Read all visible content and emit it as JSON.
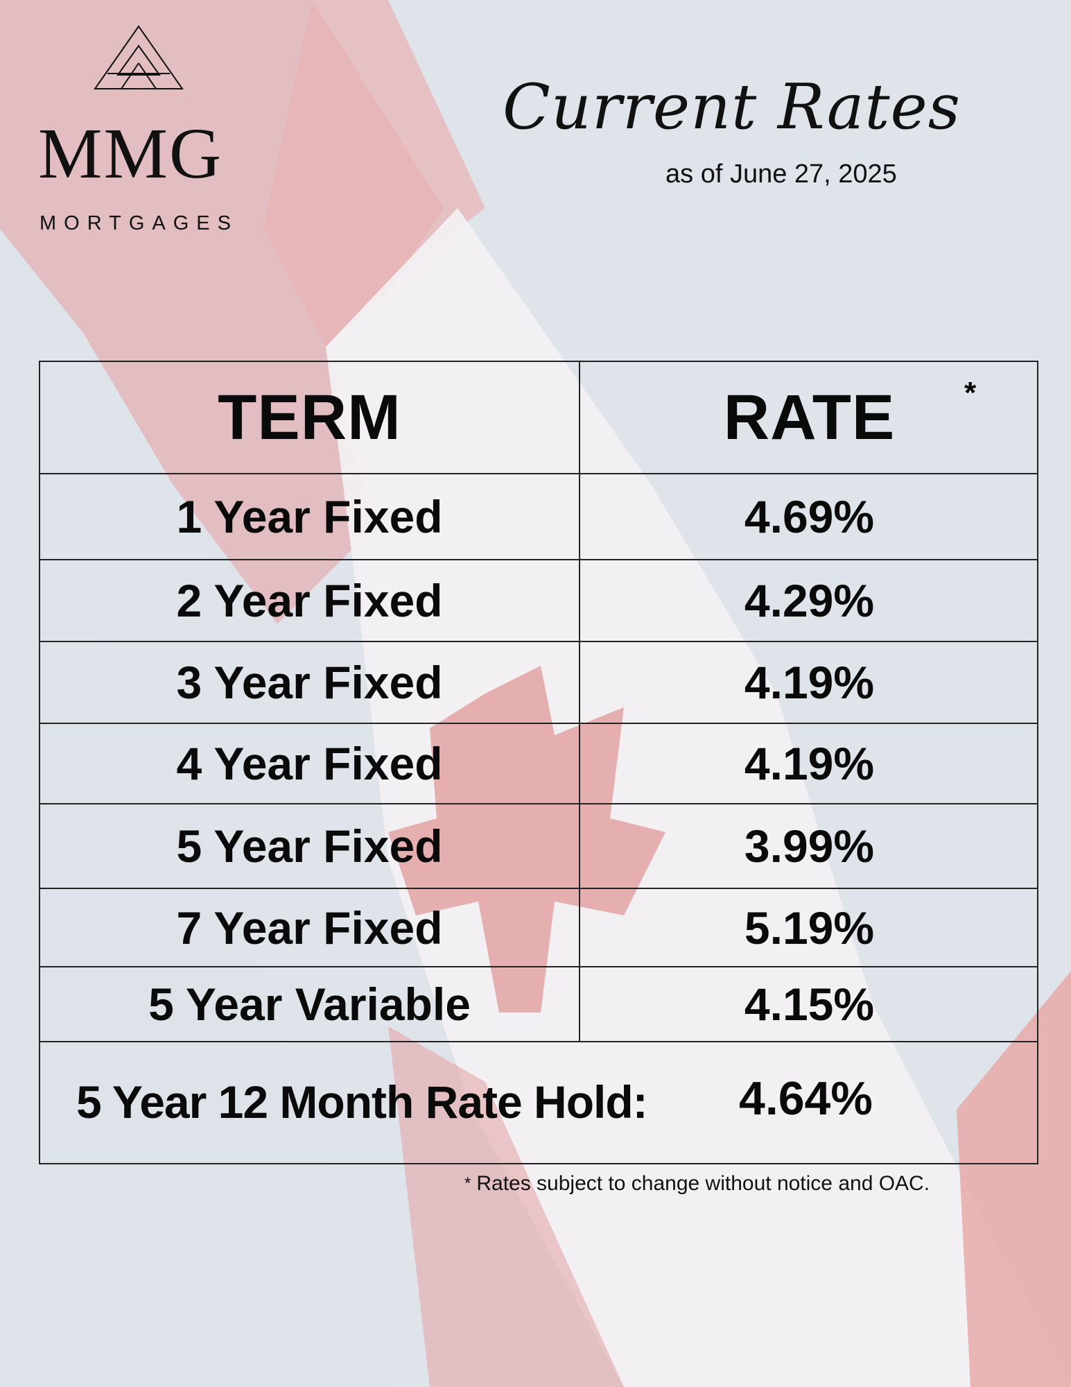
{
  "brand": {
    "name": "MMG",
    "subtitle": "MORTGAGES"
  },
  "heading": {
    "title": "Current Rates",
    "as_of": "as of June 27, 2025"
  },
  "table": {
    "header_term": "TERM",
    "header_rate": "RATE",
    "header_asterisk": "*",
    "rows": [
      {
        "term": "1 Year Fixed",
        "rate": "4.69%"
      },
      {
        "term": "2 Year Fixed",
        "rate": "4.29%"
      },
      {
        "term": "3 Year Fixed",
        "rate": "4.19%"
      },
      {
        "term": "4 Year Fixed",
        "rate": "4.19%"
      },
      {
        "term": "5 Year Fixed",
        "rate": "3.99%"
      },
      {
        "term": "7 Year Fixed",
        "rate": "5.19%"
      },
      {
        "term": "5 Year Variable",
        "rate": "4.15%"
      }
    ],
    "rate_hold_label": "5 Year 12 Month Rate Hold:",
    "rate_hold_value": "4.64%"
  },
  "footnote": {
    "star": "*",
    "text": "Rates subject to change without notice and OAC."
  },
  "colors": {
    "flag_red": "#e4a3a2",
    "flag_white": "#f6f4f5",
    "sky": "#dfe3ea",
    "text": "#0a0a0a"
  }
}
